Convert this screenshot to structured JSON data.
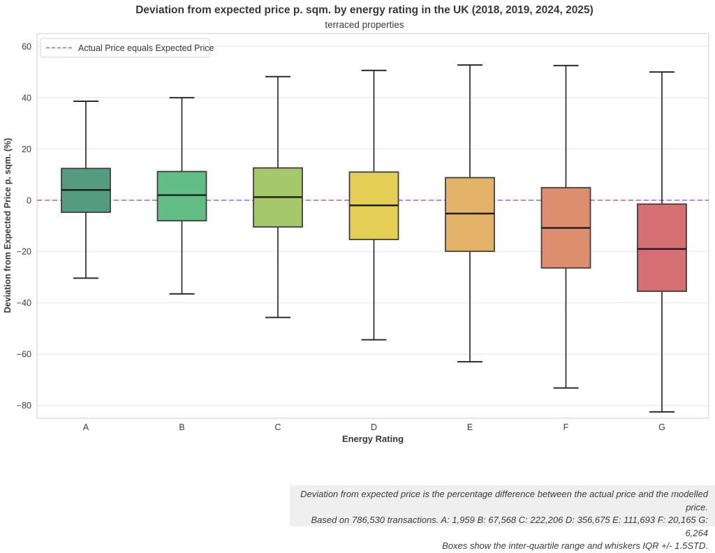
{
  "chart_data": {
    "type": "box",
    "title": "Deviation from expected price p. sqm. by energy rating in the UK (2018, 2019, 2024, 2025)",
    "subtitle": "terraced properties",
    "xlabel": "Energy Rating",
    "ylabel": "Deviation from Expected Price p. sqm. (%)",
    "ylim": [
      -85,
      65
    ],
    "yticks": [
      60,
      40,
      20,
      0,
      -20,
      -40,
      -60,
      -80
    ],
    "grid": true,
    "legend_position": "upper left",
    "categories": [
      "A",
      "B",
      "C",
      "D",
      "E",
      "F",
      "G"
    ],
    "series": [
      {
        "category": "A",
        "whisker_low": -30.4,
        "q1": -4.7,
        "median": 4.0,
        "q3": 12.4,
        "whisker_high": 38.6,
        "color": "#549b82"
      },
      {
        "category": "B",
        "whisker_low": -36.5,
        "q1": -8.0,
        "median": 2.0,
        "q3": 11.2,
        "whisker_high": 40.0,
        "color": "#61bc86"
      },
      {
        "category": "C",
        "whisker_low": -45.7,
        "q1": -10.4,
        "median": 1.2,
        "q3": 12.6,
        "whisker_high": 48.2,
        "color": "#a5c96a"
      },
      {
        "category": "D",
        "whisker_low": -54.4,
        "q1": -15.3,
        "median": -2.0,
        "q3": 11.0,
        "whisker_high": 50.6,
        "color": "#e4ce56"
      },
      {
        "category": "E",
        "whisker_low": -63.0,
        "q1": -19.9,
        "median": -5.2,
        "q3": 8.8,
        "whisker_high": 52.7,
        "color": "#e4b369"
      },
      {
        "category": "F",
        "whisker_low": -73.2,
        "q1": -26.4,
        "median": -10.8,
        "q3": 4.9,
        "whisker_high": 52.5,
        "color": "#dd8e6e"
      },
      {
        "category": "G",
        "whisker_low": -82.5,
        "q1": -35.5,
        "median": -19.0,
        "q3": -1.5,
        "whisker_high": 50.0,
        "color": "#d56f74"
      }
    ],
    "reference_line": {
      "value": 0,
      "label": "Actual Price equals Expected Price",
      "color": "#a169a6",
      "style": "dashed"
    }
  },
  "footnote": {
    "lines": [
      "Deviation from expected price is the percentage difference between the actual price and the modelled price.",
      "Based on 786,530 transactions. A: 1,959 B: 67,568 C: 222,206 D: 356,675 E: 111,693 F: 20,165 G: 6,264",
      "Boxes show the inter-quartile range and whiskers IQR +/- 1.5STD."
    ]
  },
  "style_colors": {
    "grid": "#e9e9e9",
    "frame": "#d5d5d5",
    "box_edge": "#3f3f3f",
    "median": "#1c1c1c",
    "whisker": "#2b2b2b",
    "text": "#3a3a3a",
    "footnote_bg": "#efefef"
  }
}
